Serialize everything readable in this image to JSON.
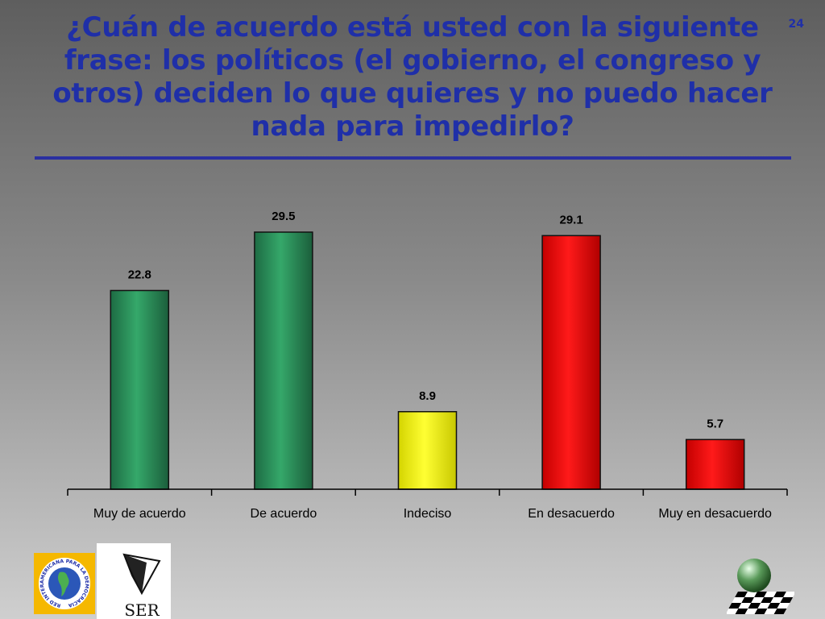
{
  "page": {
    "title": "¿Cuán de acuerdo está usted con la siguiente frase: los políticos (el gobierno, el congreso y otros) deciden lo que quieres y no puedo hacer nada para impedirlo?",
    "page_number": "24"
  },
  "logos": {
    "left": {
      "text": "RED INTERAMERICANA PARA LA DEMOCRACIA"
    },
    "ser": {
      "text": "SER"
    }
  },
  "chart_data": {
    "type": "bar",
    "categories": [
      "Muy de acuerdo",
      "De acuerdo",
      "Indeciso",
      "En desacuerdo",
      "Muy en desacuerdo"
    ],
    "values": [
      22.8,
      29.5,
      8.9,
      29.1,
      5.7
    ],
    "value_labels": [
      "22.8",
      "29.5",
      "8.9",
      "29.1",
      "5.7"
    ],
    "colors": [
      "#2e8b57",
      "#2e8b57",
      "#ffff00",
      "#ff0000",
      "#ff0000"
    ],
    "title": "",
    "xlabel": "",
    "ylabel": "",
    "ylim": [
      0,
      29.5
    ],
    "grid": false,
    "legend": "none"
  }
}
